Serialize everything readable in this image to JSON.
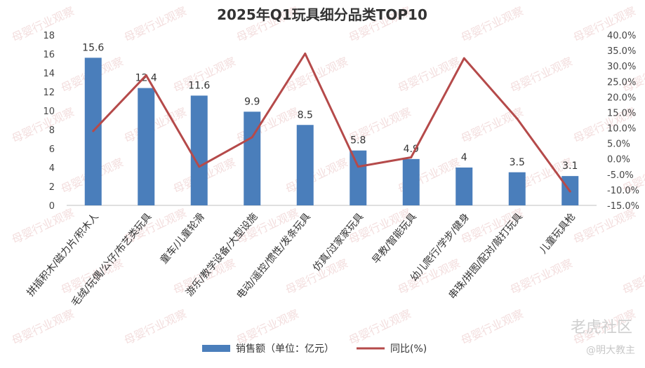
{
  "chart_data": {
    "type": "bar",
    "title": "2025年Q1玩具细分品类TOP10",
    "categories": [
      "拼插积木/磁力片/积木人",
      "毛绒/玩偶/公仔/布艺类玩具",
      "童车/儿童轮滑",
      "游乐/教学设备/大型设施",
      "电动/遥控/惯性/发条玩具",
      "仿真/过家家玩具",
      "早教/智能玩具",
      "幼儿爬行/学步/健身",
      "串珠/拼图/配对/敲打玩具",
      "儿童玩具枪"
    ],
    "series": [
      {
        "name": "销售额（单位：亿元）",
        "type": "bar",
        "axis": "left",
        "color": "#4a7ebb",
        "values": [
          15.6,
          12.4,
          11.6,
          9.9,
          8.5,
          5.8,
          4.9,
          4,
          3.5,
          3.1
        ],
        "labels": [
          "15.6",
          "12.4",
          "11.6",
          "9.9",
          "8.5",
          "5.8",
          "4.9",
          "4",
          "3.5",
          "3.1"
        ]
      },
      {
        "name": "同比(%)",
        "type": "line",
        "axis": "right",
        "color": "#b54a4a",
        "values": [
          9.0,
          27.0,
          -2.5,
          7.0,
          34.0,
          -2.5,
          0.5,
          32.5,
          13.0,
          -10.5
        ]
      }
    ],
    "y_left": {
      "min": 0,
      "max": 18,
      "ticks": [
        "0",
        "2",
        "4",
        "6",
        "8",
        "10",
        "12",
        "14",
        "16",
        "18"
      ]
    },
    "y_right": {
      "min": -15,
      "max": 40,
      "ticks": [
        "-15.0%",
        "-10.0%",
        "-5.0%",
        "0.0%",
        "5.0%",
        "10.0%",
        "15.0%",
        "20.0%",
        "25.0%",
        "30.0%",
        "35.0%",
        "40.0%"
      ]
    },
    "grid": false,
    "legend": "bottom"
  },
  "watermark": {
    "brand": "老虎社区",
    "user": "@明大教主",
    "tile": "母婴行业观察"
  }
}
